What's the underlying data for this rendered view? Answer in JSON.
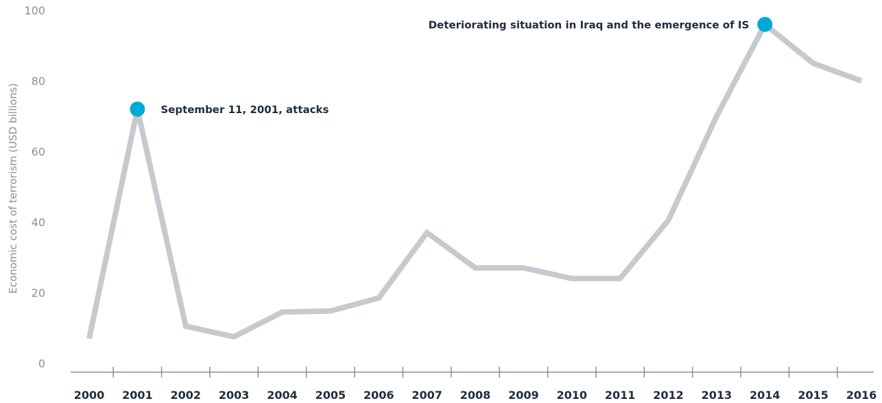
{
  "chart_data": {
    "type": "line",
    "title": "",
    "xlabel": "",
    "ylabel": "Economic cost of terrorism (USD billions)",
    "ylim": [
      0,
      100
    ],
    "yticks": [
      0,
      20,
      40,
      60,
      80,
      100
    ],
    "grid": false,
    "legend": "none",
    "x": [
      "2000",
      "2001",
      "2002",
      "2003",
      "2004",
      "2005",
      "2006",
      "2007",
      "2008",
      "2009",
      "2010",
      "2011",
      "2012",
      "2013",
      "2014",
      "2015",
      "2016"
    ],
    "series": [
      {
        "values": [
          7,
          72,
          10.5,
          7.5,
          14.5,
          14.8,
          18.5,
          37,
          27,
          27,
          24,
          24,
          40.5,
          70,
          96,
          85,
          80
        ]
      }
    ],
    "annotations": [
      {
        "x": "2001",
        "y": 72,
        "text": "September 11, 2001, attacks",
        "side": "right"
      },
      {
        "x": "2014",
        "y": 96,
        "text": "Deteriorating situation in Iraq and the emergence of IS",
        "side": "left"
      }
    ],
    "colors": {
      "line": "#c6c9cd",
      "marker": "#00a9d4",
      "axis": "#8a8f96",
      "tick_text": "#1f2d3d"
    }
  }
}
